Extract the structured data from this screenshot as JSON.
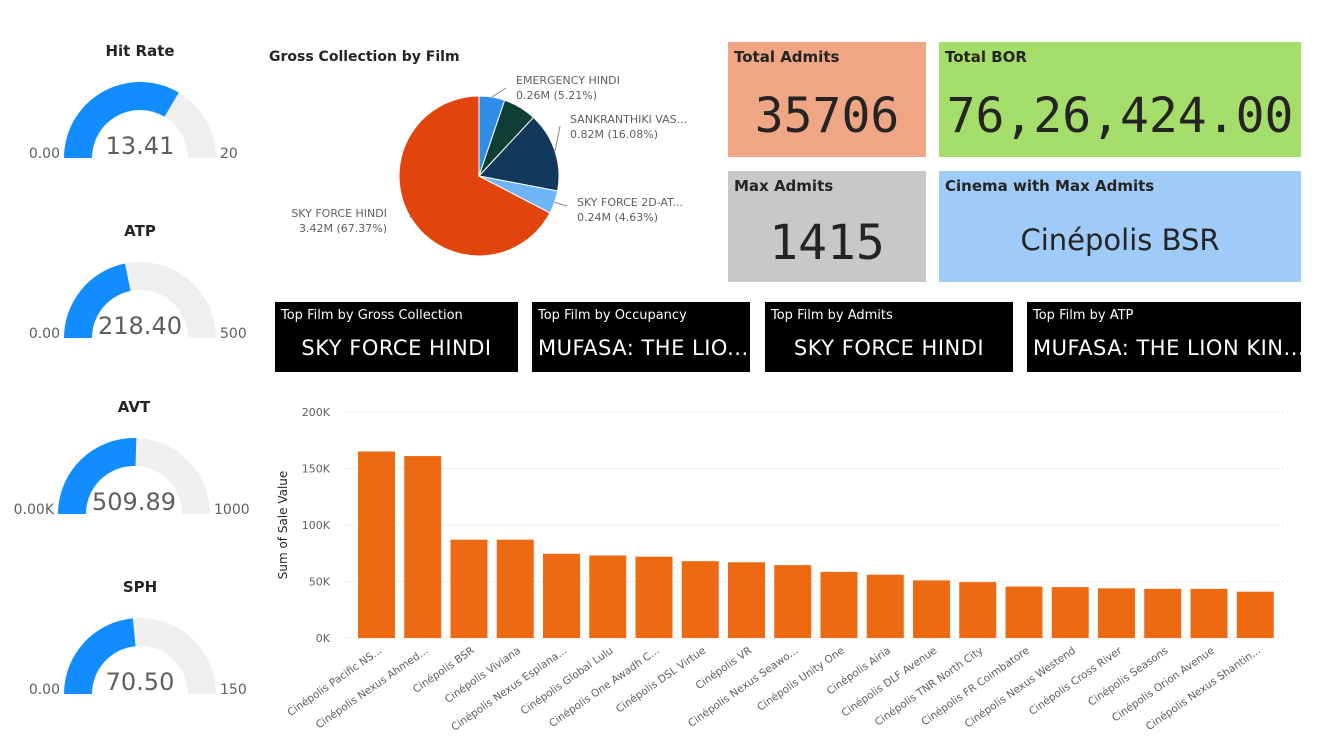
{
  "gauges": [
    {
      "title": "Hit Rate",
      "value": 13.41,
      "value_label": "13.41",
      "min": 0,
      "max": 20,
      "min_label": "0.00",
      "max_label": "20"
    },
    {
      "title": "ATP",
      "value": 218.4,
      "value_label": "218.40",
      "min": 0,
      "max": 500,
      "min_label": "0.00",
      "max_label": "500"
    },
    {
      "title": "AVT",
      "value": 509.89,
      "value_label": "509.89",
      "min": 0,
      "max": 1000,
      "min_label": "0.00K",
      "max_label": "1000"
    },
    {
      "title": "SPH",
      "value": 70.5,
      "value_label": "70.50",
      "min": 0,
      "max": 150,
      "min_label": "0.00",
      "max_label": "150"
    }
  ],
  "kpis": {
    "total_admits": {
      "label": "Total Admits",
      "value": "35706"
    },
    "total_bor": {
      "label": "Total BOR",
      "value": "76,26,424.00"
    },
    "max_admits": {
      "label": "Max Admits",
      "value": "1415"
    },
    "cinema_max": {
      "label": "Cinema with Max Admits",
      "value": "Cinépolis BSR"
    }
  },
  "top_films": [
    {
      "label": "Top Film by Gross Collection",
      "value": "SKY FORCE HINDI"
    },
    {
      "label": "Top Film by Occupancy",
      "value": "MUFASA: THE LIO..."
    },
    {
      "label": "Top Film by Admits",
      "value": "SKY FORCE HINDI"
    },
    {
      "label": "Top Film by ATP",
      "value": "MUFASA: THE LION KIN..."
    }
  ],
  "colors": {
    "gauge_fill": "#118DFF",
    "gauge_track": "#F0EFEE",
    "bar": "#EE6A12",
    "total_admits_bg": "#EFA685",
    "total_bor_bg": "#A5DD6A",
    "max_admits_bg": "#C8C8C8",
    "cinema_bg": "#9ECBF8"
  },
  "chart_data": [
    {
      "type": "pie",
      "title": "Gross Collection by Film",
      "slices": [
        {
          "name": "SKY FORCE HINDI",
          "label": "SKY FORCE HINDI",
          "detail": "3.42M (67.37%)",
          "value": 3.42,
          "percent": 67.37,
          "color": "#E2440E"
        },
        {
          "name": "EMERGENCY HINDI",
          "label": "EMERGENCY HINDI",
          "detail": "0.26M (5.21%)",
          "value": 0.26,
          "percent": 5.21,
          "color": "#2F8FE8"
        },
        {
          "name": "unlabeled",
          "label": "",
          "detail": "",
          "value": 0.34,
          "percent": 6.71,
          "color": "#0F3E35"
        },
        {
          "name": "SANKRANTHIKI VAS...",
          "label": "SANKRANTHIKI VAS...",
          "detail": "0.82M (16.08%)",
          "value": 0.82,
          "percent": 16.08,
          "color": "#12385C"
        },
        {
          "name": "SKY FORCE 2D-AT...",
          "label": "SKY FORCE 2D-AT...",
          "detail": "0.24M (4.63%)",
          "value": 0.24,
          "percent": 4.63,
          "color": "#6EB5F5"
        }
      ]
    },
    {
      "type": "bar",
      "ylabel": "Sum of Sale Value",
      "xlabel": "",
      "ylim": [
        0,
        200000
      ],
      "yticks": [
        {
          "value": 0,
          "label": "0K"
        },
        {
          "value": 50000,
          "label": "50K"
        },
        {
          "value": 100000,
          "label": "100K"
        },
        {
          "value": 150000,
          "label": "150K"
        },
        {
          "value": 200000,
          "label": "200K"
        }
      ],
      "categories": [
        "Cinépolis Pacific NS...",
        "Cinépolis Nexus Ahmed...",
        "Cinépolis BSR",
        "Cinépolis Viviana",
        "Cinépolis Nexus Esplana...",
        "Cinépolis Global Lulu",
        "Cinépolis One Awadh C...",
        "Cinépolis DSL Virtue",
        "Cinépolis VR",
        "Cinépolis Nexus Seawo...",
        "Cinépolis Unity One",
        "Cinépolis Airia",
        "Cinépolis DLF Avenue",
        "Cinépolis TNR North City",
        "Cinépolis FR Coimbatore",
        "Cinépolis Nexus Westend",
        "Cinépolis Cross River",
        "Cinépolis Seasons",
        "Cinépolis Orion Avenue",
        "Cinépolis Nexus Shantin..."
      ],
      "values": [
        165000,
        161000,
        87000,
        87000,
        74500,
        73000,
        72000,
        68000,
        67000,
        64500,
        58500,
        56000,
        51000,
        49500,
        45500,
        45000,
        44000,
        43500,
        43500,
        41000
      ],
      "grid": true
    }
  ]
}
